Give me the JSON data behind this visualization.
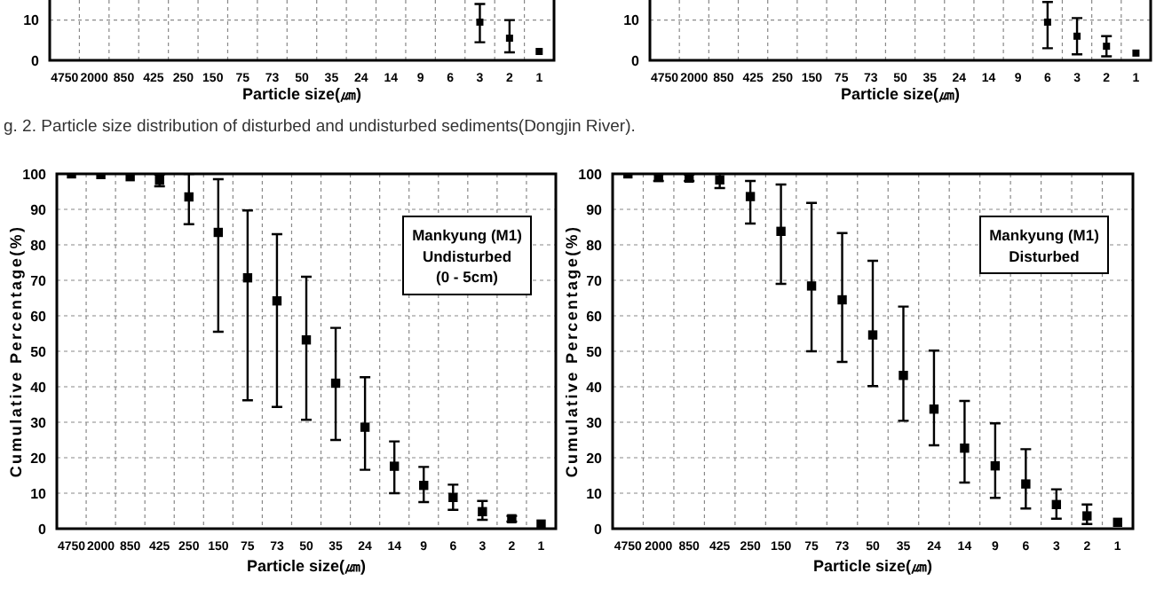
{
  "chart_data": [
    {
      "type": "scatter",
      "xlabel": "Particle size(㎛)",
      "categories": [
        "4750",
        "2000",
        "850",
        "425",
        "250",
        "150",
        "75",
        "73",
        "50",
        "35",
        "24",
        "14",
        "9",
        "6",
        "3",
        "2",
        "1"
      ],
      "values": [
        null,
        null,
        null,
        null,
        null,
        null,
        null,
        null,
        null,
        null,
        null,
        null,
        null,
        null,
        9.5,
        5.5,
        2.2
      ],
      "errors": [
        null,
        null,
        null,
        null,
        null,
        null,
        null,
        null,
        null,
        null,
        null,
        null,
        null,
        null,
        [
          4.5,
          14
        ],
        [
          2,
          10
        ],
        null
      ],
      "color": "#000000",
      "marker": "square",
      "ylim": [
        0,
        15
      ],
      "yticks": [
        0,
        10
      ],
      "grid": true
    },
    {
      "type": "scatter",
      "xlabel": "Particle size(㎛)",
      "categories": [
        "4750",
        "2000",
        "850",
        "425",
        "250",
        "150",
        "75",
        "73",
        "50",
        "35",
        "24",
        "14",
        "9",
        "6",
        "3",
        "2",
        "1"
      ],
      "values": [
        null,
        null,
        null,
        null,
        null,
        null,
        null,
        null,
        null,
        null,
        null,
        null,
        null,
        9.5,
        6,
        3.5,
        1.8
      ],
      "errors": [
        null,
        null,
        null,
        null,
        null,
        null,
        null,
        null,
        null,
        null,
        null,
        null,
        null,
        [
          3,
          14.5
        ],
        [
          1.5,
          10.5
        ],
        [
          1,
          6
        ],
        null
      ],
      "color": "#000000",
      "marker": "square",
      "ylim": [
        0,
        15
      ],
      "yticks": [
        0,
        10
      ],
      "grid": true,
      "annotations": [
        "g. 2. Particle size distribution of disturbed and undisturbed sediments(Dongjin River)."
      ]
    },
    {
      "type": "scatter",
      "xlabel": "Particle size(㎛)",
      "ylabel": "Cumulative Percentage(%)",
      "categories": [
        "4750",
        "2000",
        "850",
        "425",
        "250",
        "150",
        "75",
        "73",
        "50",
        "35",
        "24",
        "14",
        "9",
        "6",
        "3",
        "2",
        "1"
      ],
      "values": [
        100,
        99.8,
        99.2,
        98.2,
        93.5,
        83.5,
        70.7,
        64.2,
        53.2,
        41,
        28.6,
        17.6,
        12.2,
        8.8,
        4.8,
        2.8,
        1.3
      ],
      "errors": [
        null,
        null,
        null,
        [
          96.5,
          99.8
        ],
        [
          85.8,
          100
        ],
        [
          55.5,
          98.5
        ],
        [
          36.2,
          89.7
        ],
        [
          34.3,
          83
        ],
        [
          30.7,
          71
        ],
        [
          25,
          56.6
        ],
        [
          16.6,
          42.7
        ],
        [
          10,
          24.6
        ],
        [
          7.5,
          17.4
        ],
        [
          5.3,
          12.4
        ],
        [
          2.5,
          7.8
        ],
        [
          2,
          3.6
        ],
        null
      ],
      "color": "#000000",
      "marker": "square",
      "ylim": [
        0,
        100
      ],
      "yticks": [
        0,
        10,
        20,
        30,
        40,
        50,
        60,
        70,
        80,
        90,
        100
      ],
      "grid": true,
      "annotations": [
        "Mankyung (M1)\nUndisturbed\n(0 - 5cm)"
      ]
    },
    {
      "type": "scatter",
      "xlabel": "Particle size(㎛)",
      "ylabel": "Cumulative Percentage(%)",
      "categories": [
        "4750",
        "2000",
        "850",
        "425",
        "250",
        "150",
        "75",
        "73",
        "50",
        "35",
        "24",
        "14",
        "9",
        "6",
        "3",
        "2",
        "1"
      ],
      "values": [
        100,
        99,
        98.8,
        98.3,
        93.6,
        83.8,
        68.4,
        64.5,
        54.6,
        43.2,
        33.7,
        22.7,
        17.7,
        12.6,
        6.8,
        3.6,
        1.8
      ],
      "errors": [
        null,
        [
          98,
          100
        ],
        [
          98,
          99.8
        ],
        [
          96,
          100
        ],
        [
          86,
          98
        ],
        [
          69,
          97
        ],
        [
          50,
          91.8
        ],
        [
          47,
          83.3
        ],
        [
          40.2,
          75.5
        ],
        [
          30.4,
          62.6
        ],
        [
          23.5,
          50.2
        ],
        [
          13,
          36
        ],
        [
          8.7,
          29.7
        ],
        [
          5.7,
          22.4
        ],
        [
          2.8,
          11.1
        ],
        [
          1.3,
          6.8
        ],
        null
      ],
      "color": "#000000",
      "marker": "square",
      "ylim": [
        0,
        100
      ],
      "yticks": [
        0,
        10,
        20,
        30,
        40,
        50,
        60,
        70,
        80,
        90,
        100
      ],
      "grid": true,
      "annotations": [
        "Mankyung (M1)\nDisturbed"
      ]
    }
  ]
}
